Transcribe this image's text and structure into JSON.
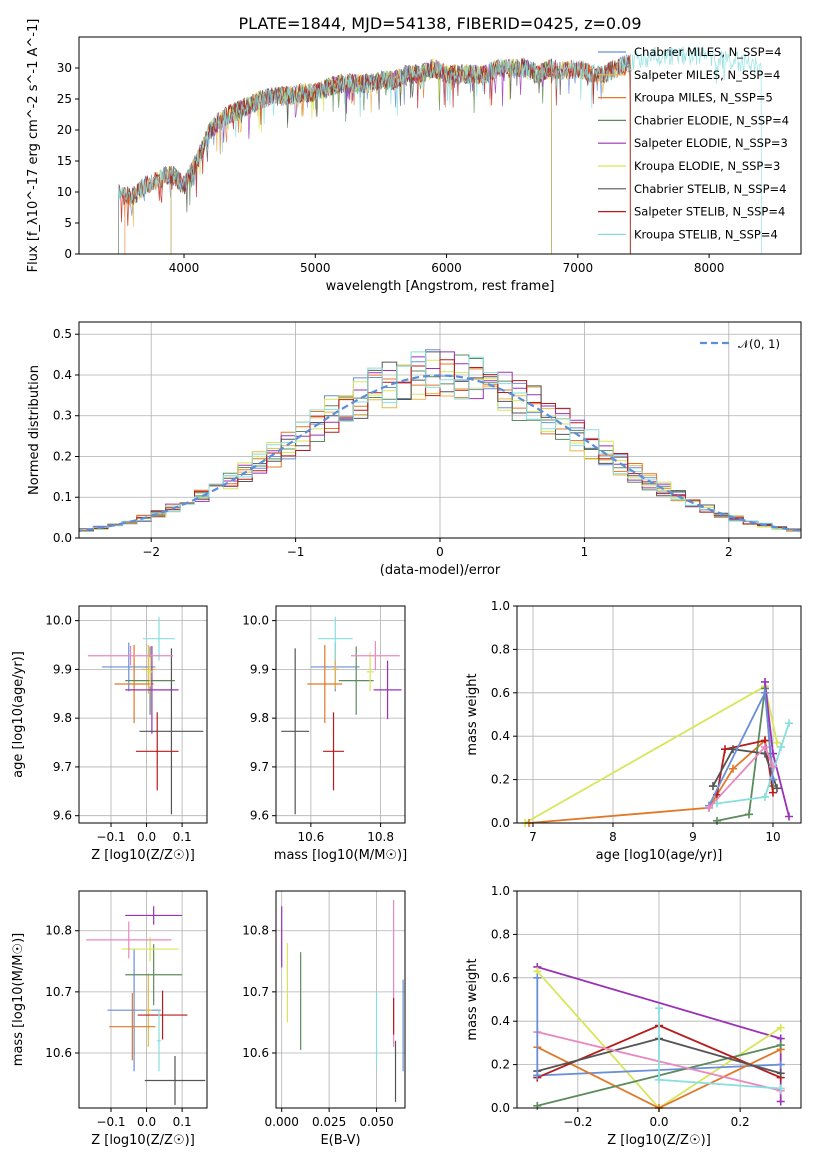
{
  "figure": {
    "title": "PLATE=1844, MJD=54138, FIBERID=0425, z=0.09"
  },
  "colors": {
    "Chabrier MILES": "#6a8fd8",
    "Salpeter MILES": "#e8b84a",
    "Kroupa MILES": "#e07828",
    "Chabrier ELODIE": "#5c8c5c",
    "Salpeter ELODIE": "#9a32b8",
    "Kroupa ELODIE": "#d8e658",
    "Chabrier STELIB": "#555555",
    "Salpeter STELIB": "#b81c1c",
    "Kroupa STELIB": "#88dede",
    "Pink": "#e888c0",
    "Gauss": "#5b8fd9"
  },
  "chart_data": [
    {
      "id": "spectrum",
      "type": "line",
      "xlabel": "wavelength [Angstrom, rest frame]",
      "ylabel": "Flux [f_λ10^-17 erg cm^-2 s^-1 A^-1]",
      "xlim": [
        3200,
        8700
      ],
      "ylim": [
        0,
        35
      ],
      "xticks": [
        4000,
        5000,
        6000,
        7000,
        8000
      ],
      "yticks": [
        0,
        5,
        10,
        15,
        20,
        25,
        30
      ],
      "grid": false,
      "legend_position": "right",
      "legend": [
        "Chabrier MILES, N_SSP=4",
        "Salpeter MILES, N_SSP=4",
        "Kroupa MILES, N_SSP=5",
        "Chabrier ELODIE, N_SSP=4",
        "Salpeter ELODIE, N_SSP=3",
        "Kroupa ELODIE, N_SSP=3",
        "Chabrier STELIB, N_SSP=4",
        "Salpeter STELIB, N_SSP=4",
        "Kroupa STELIB, N_SSP=4"
      ],
      "continuum": {
        "x": [
          3500,
          3600,
          3700,
          3800,
          3900,
          4000,
          4100,
          4200,
          4300,
          4400,
          4500,
          4600,
          4700,
          4800,
          4900,
          5000,
          5100,
          5200,
          5300,
          5400,
          5500,
          5600,
          5700,
          5800,
          5900,
          6000,
          6100,
          6200,
          6300,
          6400,
          6500,
          6600,
          6700,
          6800,
          6900,
          7000,
          7100,
          7200,
          7300,
          7400,
          7600,
          7800,
          8000,
          8200,
          8500
        ],
        "y": [
          10,
          9,
          11,
          12,
          13,
          11,
          15,
          20,
          22,
          23,
          24,
          25,
          25.5,
          25.5,
          26,
          26,
          27,
          27.5,
          27.5,
          27.5,
          28,
          28,
          29,
          29,
          30,
          29,
          29,
          29,
          29,
          30,
          30,
          30,
          29,
          30,
          29.5,
          30,
          29,
          29,
          30,
          31,
          32,
          32,
          32,
          31,
          30
        ]
      },
      "spectrum_models": [
        {
          "name": "Chabrier MILES",
          "xmin": 3500,
          "xmax": 7400
        },
        {
          "name": "Salpeter MILES",
          "xmin": 3500,
          "xmax": 7400
        },
        {
          "name": "Kroupa MILES",
          "xmin": 3550,
          "xmax": 7400
        },
        {
          "name": "Chabrier ELODIE",
          "xmin": 3900,
          "xmax": 6800
        },
        {
          "name": "Salpeter ELODIE",
          "xmin": 3900,
          "xmax": 6800
        },
        {
          "name": "Kroupa ELODIE",
          "xmin": 3900,
          "xmax": 6800
        },
        {
          "name": "Chabrier STELIB",
          "xmin": 3500,
          "xmax": 7400
        },
        {
          "name": "Salpeter STELIB",
          "xmin": 3500,
          "xmax": 7400
        },
        {
          "name": "Kroupa STELIB",
          "xmin": 3500,
          "xmax": 8400
        }
      ]
    },
    {
      "id": "residuals",
      "type": "histogram",
      "xlabel": "(data-model)/error",
      "ylabel": "Normed distribution",
      "xlim": [
        -2.5,
        2.5
      ],
      "ylim": [
        0,
        0.53
      ],
      "xticks": [
        -2,
        -1,
        0,
        1,
        2
      ],
      "yticks": [
        0.0,
        0.1,
        0.2,
        0.3,
        0.4,
        0.5
      ],
      "grid": true,
      "legend_position": "top-right",
      "legend": [
        "N(0,1)"
      ],
      "bin_width": 0.1,
      "gaussian": {
        "name": "N(0,1)",
        "mean": 0,
        "sigma": 1,
        "style": "dashed"
      },
      "histograms": [
        {
          "name": "Chabrier MILES",
          "seed": 1
        },
        {
          "name": "Salpeter MILES",
          "seed": 2
        },
        {
          "name": "Kroupa MILES",
          "seed": 3
        },
        {
          "name": "Chabrier ELODIE",
          "seed": 4
        },
        {
          "name": "Salpeter ELODIE",
          "seed": 5
        },
        {
          "name": "Kroupa ELODIE",
          "seed": 6
        },
        {
          "name": "Chabrier STELIB",
          "seed": 7
        },
        {
          "name": "Salpeter STELIB",
          "seed": 8
        },
        {
          "name": "Kroupa STELIB",
          "seed": 9
        }
      ]
    },
    {
      "id": "age_vs_Z",
      "type": "errorbar",
      "xlabel": "Z [log10(Z/Z☉)]",
      "ylabel": "age  [log10(age/yr)]",
      "xlim": [
        -0.19,
        0.17
      ],
      "ylim": [
        9.585,
        10.03
      ],
      "xticks": [
        -0.1,
        0.0,
        0.1
      ],
      "yticks": [
        9.6,
        9.7,
        9.8,
        9.9,
        10.0
      ],
      "grid": true,
      "points": [
        {
          "color": "Chabrier MILES",
          "x": -0.05,
          "y": 9.905,
          "xerr": 0.075,
          "yerr": 0.05
        },
        {
          "color": "Salpeter MILES",
          "x": 0.005,
          "y": 9.9,
          "xerr": 0.02,
          "yerr": 0.05
        },
        {
          "color": "Kroupa MILES",
          "x": -0.035,
          "y": 9.87,
          "xerr": 0.055,
          "yerr": 0.08
        },
        {
          "color": "Chabrier ELODIE",
          "x": 0.01,
          "y": 9.877,
          "xerr": 0.07,
          "yerr": 0.07
        },
        {
          "color": "Salpeter ELODIE",
          "x": 0.015,
          "y": 9.858,
          "xerr": 0.075,
          "yerr": 0.09
        },
        {
          "color": "Kroupa ELODIE",
          "x": 0.01,
          "y": 9.895,
          "xerr": 0.01,
          "yerr": 0.03
        },
        {
          "color": "Chabrier STELIB",
          "x": 0.07,
          "y": 9.773,
          "xerr": 0.09,
          "yerr": 0.17
        },
        {
          "color": "Salpeter STELIB",
          "x": 0.03,
          "y": 9.732,
          "xerr": 0.06,
          "yerr": 0.08
        },
        {
          "color": "Kroupa STELIB",
          "x": 0.035,
          "y": 9.963,
          "xerr": 0.045,
          "yerr": 0.045
        },
        {
          "color": "Pink",
          "x": -0.045,
          "y": 9.928,
          "xerr": 0.12,
          "yerr": 0.02
        }
      ]
    },
    {
      "id": "age_vs_mass",
      "type": "errorbar",
      "xlabel": "mass [log10(M/M☉)]",
      "xlim": [
        10.5,
        10.87
      ],
      "ylim": [
        9.585,
        10.03
      ],
      "xticks": [
        10.6,
        10.8
      ],
      "yticks": [
        9.6,
        9.7,
        9.8,
        9.9,
        10.0
      ],
      "grid": true,
      "points": [
        {
          "color": "Chabrier MILES",
          "x": 10.67,
          "y": 9.905,
          "xerr": 0.07,
          "yerr": 0.05
        },
        {
          "color": "Salpeter MILES",
          "x": 10.67,
          "y": 9.9,
          "xerr": 0.01,
          "yerr": 0.04
        },
        {
          "color": "Kroupa MILES",
          "x": 10.64,
          "y": 9.87,
          "xerr": 0.05,
          "yerr": 0.08
        },
        {
          "color": "Chabrier ELODIE",
          "x": 10.73,
          "y": 9.877,
          "xerr": 0.05,
          "yerr": 0.07
        },
        {
          "color": "Salpeter ELODIE",
          "x": 10.82,
          "y": 9.858,
          "xerr": 0.04,
          "yerr": 0.06
        },
        {
          "color": "Kroupa ELODIE",
          "x": 10.77,
          "y": 9.895,
          "xerr": 0.01,
          "yerr": 0.04
        },
        {
          "color": "Chabrier STELIB",
          "x": 10.555,
          "y": 9.773,
          "xerr": 0.04,
          "yerr": 0.17
        },
        {
          "color": "Salpeter STELIB",
          "x": 10.665,
          "y": 9.732,
          "xerr": 0.03,
          "yerr": 0.08
        },
        {
          "color": "Kroupa STELIB",
          "x": 10.67,
          "y": 9.963,
          "xerr": 0.05,
          "yerr": 0.045
        },
        {
          "color": "Pink",
          "x": 10.785,
          "y": 9.928,
          "xerr": 0.07,
          "yerr": 0.03
        }
      ]
    },
    {
      "id": "weight_vs_age",
      "type": "line",
      "xlabel": "age  [log10(age/yr)]",
      "ylabel": "mass weight",
      "xlim": [
        6.8,
        10.35
      ],
      "ylim": [
        0,
        1.0
      ],
      "xticks": [
        7,
        8,
        9,
        10
      ],
      "yticks": [
        0.0,
        0.2,
        0.4,
        0.6,
        0.8,
        1.0
      ],
      "grid": true,
      "series": [
        {
          "color": "Kroupa ELODIE",
          "x": [
            6.9,
            9.9,
            10.05
          ],
          "y": [
            0.0,
            0.63,
            0.37
          ]
        },
        {
          "color": "Kroupa MILES",
          "x": [
            6.95,
            9.2,
            9.5,
            9.9
          ],
          "y": [
            0.0,
            0.07,
            0.25,
            0.38
          ]
        },
        {
          "color": "Chabrier ELODIE",
          "x": [
            9.3,
            9.7,
            9.9,
            10.0
          ],
          "y": [
            0.01,
            0.04,
            0.62,
            0.17
          ]
        },
        {
          "color": "Salpeter ELODIE",
          "x": [
            9.9,
            10.0,
            10.2
          ],
          "y": [
            0.65,
            0.32,
            0.03
          ]
        },
        {
          "color": "Salpeter STELIB",
          "x": [
            9.3,
            9.4,
            9.9,
            10.0
          ],
          "y": [
            0.13,
            0.34,
            0.38,
            0.14
          ]
        },
        {
          "color": "Chabrier STELIB",
          "x": [
            9.25,
            9.5,
            9.9,
            10.05
          ],
          "y": [
            0.17,
            0.34,
            0.32,
            0.16
          ]
        },
        {
          "color": "Kroupa STELIB",
          "x": [
            9.3,
            9.9,
            10.1,
            10.2
          ],
          "y": [
            0.09,
            0.12,
            0.35,
            0.46
          ]
        },
        {
          "color": "Chabrier MILES",
          "x": [
            9.2,
            9.9,
            10.0
          ],
          "y": [
            0.08,
            0.6,
            0.2
          ]
        },
        {
          "color": "Pink",
          "x": [
            9.2,
            9.9,
            10.0
          ],
          "y": [
            0.07,
            0.35,
            0.26
          ]
        }
      ]
    },
    {
      "id": "mass_vs_Z",
      "type": "errorbar",
      "xlabel": "Z [log10(Z/Z☉)]",
      "ylabel": "mass [log10(M/M☉)]",
      "xlim": [
        -0.19,
        0.17
      ],
      "ylim": [
        10.51,
        10.865
      ],
      "xticks": [
        -0.1,
        0.0,
        0.1
      ],
      "yticks": [
        10.6,
        10.7,
        10.8
      ],
      "grid": true,
      "points": [
        {
          "color": "Chabrier MILES",
          "x": -0.035,
          "y": 10.67,
          "xerr": 0.075,
          "yerr": 0.1
        },
        {
          "color": "Salpeter MILES",
          "x": 0.005,
          "y": 10.67,
          "xerr": 0.01,
          "yerr": 0.06
        },
        {
          "color": "Kroupa MILES",
          "x": -0.04,
          "y": 10.643,
          "xerr": 0.065,
          "yerr": 0.055
        },
        {
          "color": "Chabrier ELODIE",
          "x": 0.02,
          "y": 10.728,
          "xerr": 0.08,
          "yerr": 0.05
        },
        {
          "color": "Salpeter ELODIE",
          "x": 0.02,
          "y": 10.825,
          "xerr": 0.08,
          "yerr": 0.015
        },
        {
          "color": "Kroupa ELODIE",
          "x": 0.01,
          "y": 10.77,
          "xerr": 0.08,
          "yerr": 0.02
        },
        {
          "color": "Chabrier STELIB",
          "x": 0.08,
          "y": 10.555,
          "xerr": 0.085,
          "yerr": 0.04
        },
        {
          "color": "Salpeter STELIB",
          "x": 0.045,
          "y": 10.662,
          "xerr": 0.07,
          "yerr": 0.04
        },
        {
          "color": "Kroupa STELIB",
          "x": 0.035,
          "y": 10.62,
          "xerr": 0.005,
          "yerr": 0.05
        },
        {
          "color": "Pink",
          "x": -0.05,
          "y": 10.785,
          "xerr": 0.12,
          "yerr": 0.03
        }
      ]
    },
    {
      "id": "mass_vs_ebv",
      "type": "errorbar",
      "xlabel": "E(B-V)",
      "xlim": [
        -0.003,
        0.065
      ],
      "ylim": [
        10.51,
        10.865
      ],
      "xticks": [
        0.0,
        0.025,
        0.05
      ],
      "yticks": [
        10.6,
        10.7,
        10.8
      ],
      "grid": true,
      "points": [
        {
          "color": "Salpeter ELODIE",
          "x": 0.0,
          "y": 10.79,
          "xerr": 0,
          "yerr": 0.05
        },
        {
          "color": "Kroupa ELODIE",
          "x": 0.003,
          "y": 10.715,
          "xerr": 0,
          "yerr": 0.065
        },
        {
          "color": "Chabrier ELODIE",
          "x": 0.01,
          "y": 10.685,
          "xerr": 0,
          "yerr": 0.08
        },
        {
          "color": "Kroupa STELIB",
          "x": 0.05,
          "y": 10.64,
          "xerr": 0,
          "yerr": 0.06
        },
        {
          "color": "Pink",
          "x": 0.059,
          "y": 10.73,
          "xerr": 0,
          "yerr": 0.12
        },
        {
          "color": "Salpeter STELIB",
          "x": 0.059,
          "y": 10.66,
          "xerr": 0,
          "yerr": 0.03
        },
        {
          "color": "Chabrier STELIB",
          "x": 0.06,
          "y": 10.57,
          "xerr": 0,
          "yerr": 0.05
        },
        {
          "color": "Chabrier MILES",
          "x": 0.064,
          "y": 10.645,
          "xerr": 0,
          "yerr": 0.075
        }
      ]
    },
    {
      "id": "weight_vs_Z",
      "type": "line",
      "xlabel": "Z [log10(Z/Z☉)]",
      "ylabel": "mass weight",
      "xlim": [
        -0.35,
        0.35
      ],
      "ylim": [
        0,
        1.0
      ],
      "xticks": [
        -0.2,
        0.0,
        0.2
      ],
      "yticks": [
        0.0,
        0.2,
        0.4,
        0.6,
        0.8,
        1.0
      ],
      "grid": true,
      "series": [
        {
          "color": "Salpeter ELODIE",
          "x": [
            -0.3,
            0.3,
            0.3
          ],
          "y": [
            0.65,
            0.32,
            0.03
          ]
        },
        {
          "color": "Kroupa ELODIE",
          "x": [
            -0.3,
            0.0,
            0.3
          ],
          "y": [
            0.63,
            0.0,
            0.37
          ]
        },
        {
          "color": "Chabrier MILES",
          "x": [
            -0.3,
            0.3
          ],
          "y": [
            0.15,
            0.2
          ]
        },
        {
          "color": "Kroupa MILES",
          "x": [
            -0.3,
            0.0,
            0.3
          ],
          "y": [
            0.28,
            0.0,
            0.27
          ]
        },
        {
          "color": "Chabrier ELODIE",
          "x": [
            -0.3,
            0.3
          ],
          "y": [
            0.01,
            0.29
          ]
        },
        {
          "color": "Salpeter STELIB",
          "x": [
            -0.3,
            0.0,
            0.3
          ],
          "y": [
            0.14,
            0.38,
            0.14
          ]
        },
        {
          "color": "Chabrier STELIB",
          "x": [
            -0.3,
            0.0,
            0.3
          ],
          "y": [
            0.17,
            0.32,
            0.16
          ]
        },
        {
          "color": "Pink",
          "x": [
            -0.3,
            0.3
          ],
          "y": [
            0.35,
            0.08
          ]
        },
        {
          "color": "Kroupa STELIB",
          "x": [
            0.0,
            0.0,
            0.3
          ],
          "y": [
            0.46,
            0.13,
            0.09
          ]
        },
        {
          "color": "Chabrier MILES",
          "x": [
            -0.3,
            -0.3
          ],
          "y": [
            0.6,
            0.15
          ]
        }
      ]
    }
  ]
}
